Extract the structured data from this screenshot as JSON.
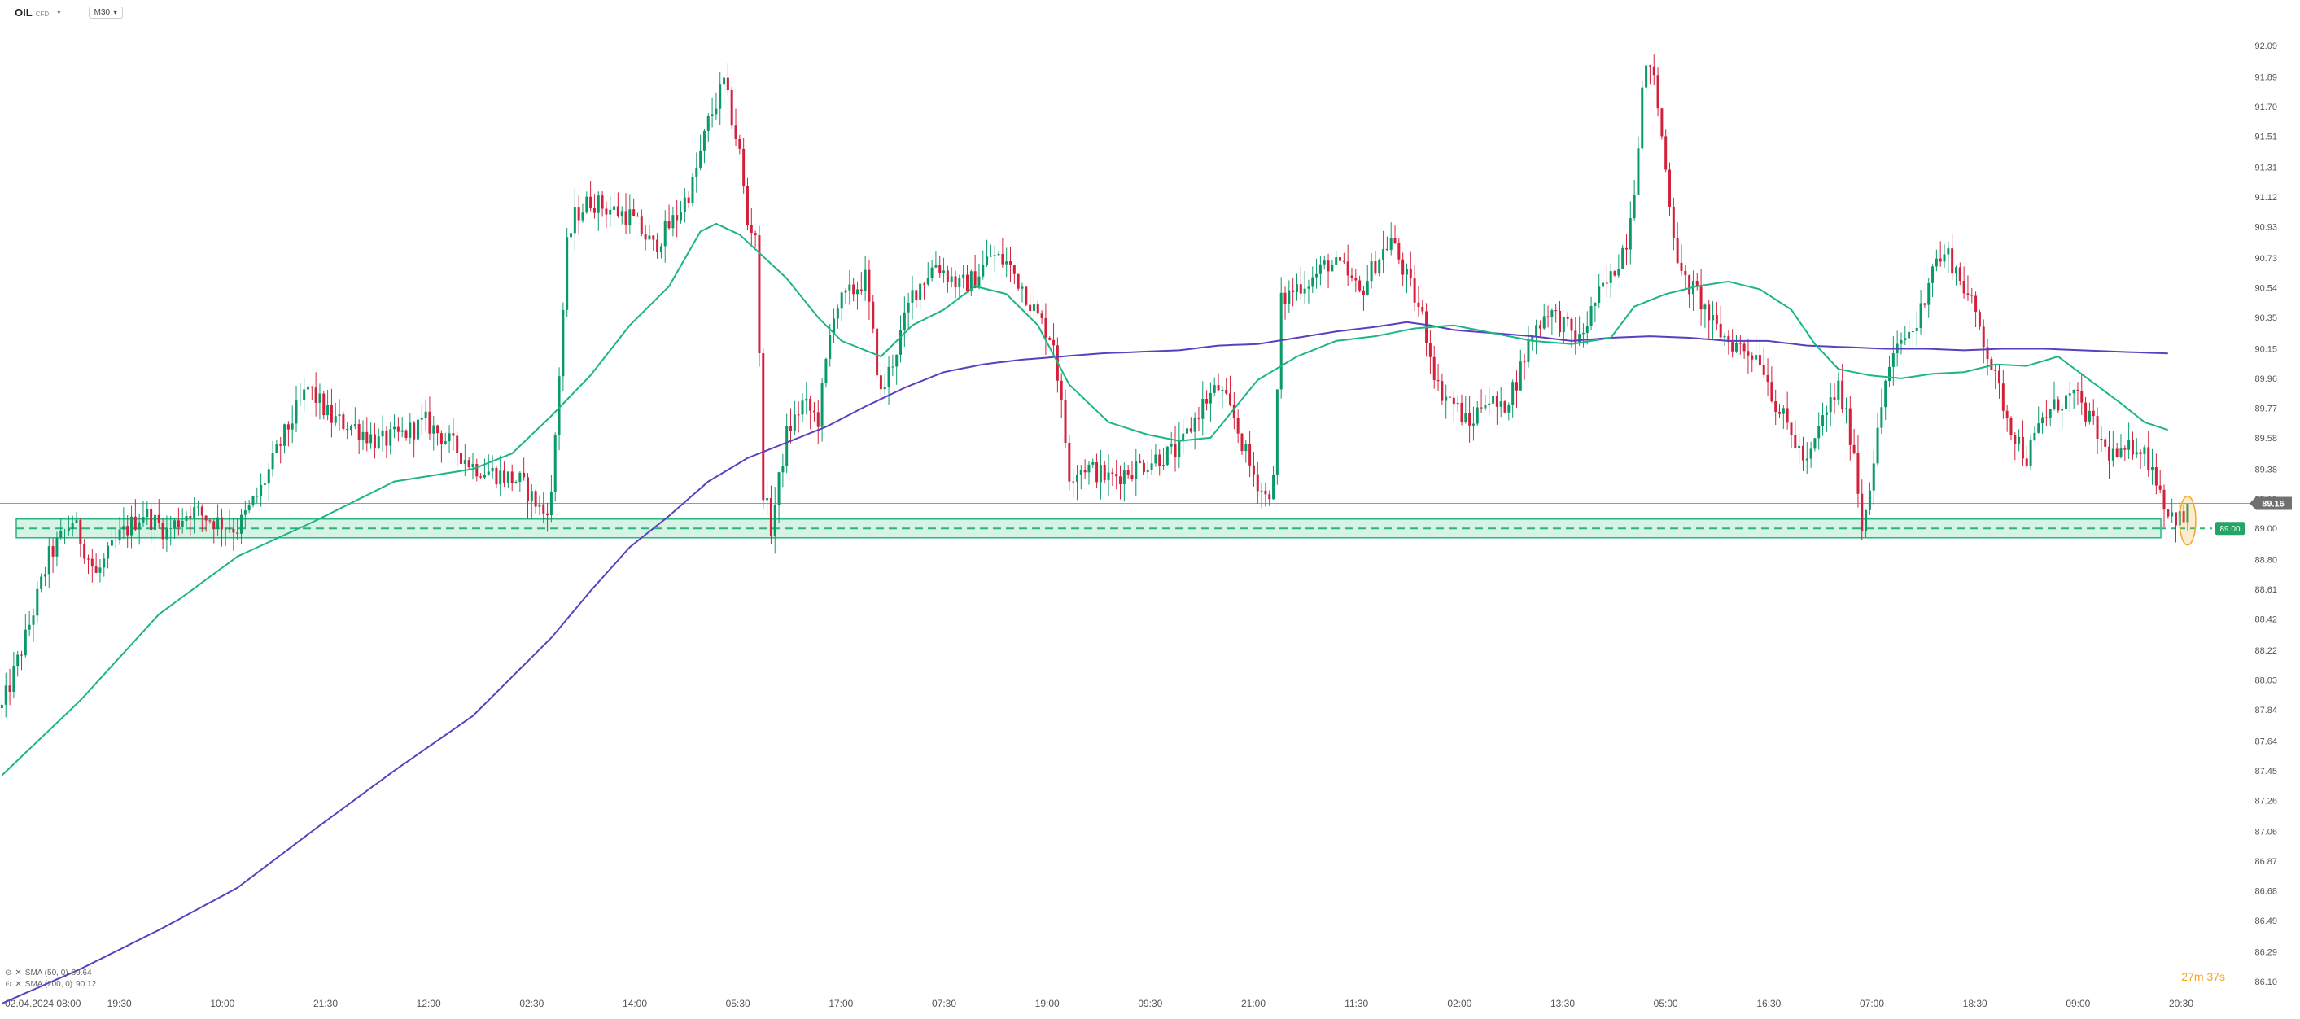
{
  "header": {
    "symbol": "OIL",
    "instrument_type": "CFD",
    "timeframe": "M30",
    "dropdown_icon": "chevron-down-icon"
  },
  "indicators": [
    {
      "label": "SMA (50, 0)",
      "value": "89.64",
      "color": "#1db586"
    },
    {
      "label": "SMA (200, 0)",
      "value": "90.12",
      "color": "#5b3fbf"
    }
  ],
  "countdown": "27m 37s",
  "colors": {
    "up": "#0a9a6a",
    "down": "#d3213c",
    "sma50": "#1db586",
    "sma200": "#5b3fbf",
    "zone_fill": "#c8f0dc",
    "zone_stroke": "#2bb57c",
    "price_badge": "#707070",
    "level_badge": "#22a565",
    "highlight": "#f5a623"
  },
  "chart_data": {
    "type": "candlestick",
    "ylim": [
      86.1,
      92.09
    ],
    "y_ticks": [
      "92.09",
      "91.89",
      "91.70",
      "91.51",
      "91.31",
      "91.12",
      "90.93",
      "90.73",
      "90.54",
      "90.35",
      "90.15",
      "89.96",
      "89.77",
      "89.58",
      "89.38",
      "89.19",
      "89.00",
      "88.80",
      "88.61",
      "88.42",
      "88.22",
      "88.03",
      "87.84",
      "87.64",
      "87.45",
      "87.26",
      "87.06",
      "86.87",
      "86.68",
      "86.49",
      "86.29",
      "86.10"
    ],
    "x_ticks": [
      "02.04.2024 08:00",
      "19:30",
      "10:00",
      "21:30",
      "12:00",
      "02:30",
      "14:00",
      "05:30",
      "17:00",
      "07:30",
      "19:00",
      "09:30",
      "21:00",
      "11:30",
      "02:00",
      "13:30",
      "05:00",
      "16:30",
      "07:00",
      "18:30",
      "09:00",
      "20:30"
    ],
    "current_price": "89.16",
    "support_level": "89.00",
    "support_zone": [
      88.94,
      89.06
    ],
    "price_path": [
      [
        0,
        87.85
      ],
      [
        6,
        88.3
      ],
      [
        12,
        88.82
      ],
      [
        18,
        89.05
      ],
      [
        24,
        88.7
      ],
      [
        30,
        88.95
      ],
      [
        36,
        89.1
      ],
      [
        42,
        88.98
      ],
      [
        48,
        89.12
      ],
      [
        54,
        89.05
      ],
      [
        60,
        89.0
      ],
      [
        66,
        89.25
      ],
      [
        72,
        89.6
      ],
      [
        78,
        89.9
      ],
      [
        84,
        89.7
      ],
      [
        90,
        89.65
      ],
      [
        96,
        89.55
      ],
      [
        102,
        89.6
      ],
      [
        108,
        89.68
      ],
      [
        114,
        89.55
      ],
      [
        120,
        89.4
      ],
      [
        126,
        89.35
      ],
      [
        132,
        89.3
      ],
      [
        138,
        89.1
      ],
      [
        140,
        89.2
      ],
      [
        144,
        90.8
      ],
      [
        146,
        91.0
      ],
      [
        150,
        91.1
      ],
      [
        154,
        91.05
      ],
      [
        160,
        91.0
      ],
      [
        166,
        90.8
      ],
      [
        172,
        91.0
      ],
      [
        176,
        91.2
      ],
      [
        180,
        91.6
      ],
      [
        184,
        91.85
      ],
      [
        188,
        91.4
      ],
      [
        190,
        90.95
      ],
      [
        192,
        90.9
      ],
      [
        194,
        89.25
      ],
      [
        196,
        89.0
      ],
      [
        200,
        89.6
      ],
      [
        204,
        89.8
      ],
      [
        208,
        89.7
      ],
      [
        212,
        90.4
      ],
      [
        216,
        90.5
      ],
      [
        220,
        90.6
      ],
      [
        224,
        89.85
      ],
      [
        228,
        90.15
      ],
      [
        232,
        90.5
      ],
      [
        238,
        90.7
      ],
      [
        244,
        90.55
      ],
      [
        248,
        90.6
      ],
      [
        252,
        90.75
      ],
      [
        256,
        90.7
      ],
      [
        260,
        90.55
      ],
      [
        264,
        90.35
      ],
      [
        268,
        90.2
      ],
      [
        272,
        89.35
      ],
      [
        276,
        89.4
      ],
      [
        282,
        89.32
      ],
      [
        288,
        89.38
      ],
      [
        294,
        89.45
      ],
      [
        300,
        89.5
      ],
      [
        306,
        89.8
      ],
      [
        310,
        89.9
      ],
      [
        314,
        89.7
      ],
      [
        318,
        89.4
      ],
      [
        322,
        89.2
      ],
      [
        324,
        89.3
      ],
      [
        326,
        90.45
      ],
      [
        330,
        90.55
      ],
      [
        334,
        90.6
      ],
      [
        338,
        90.7
      ],
      [
        342,
        90.65
      ],
      [
        346,
        90.5
      ],
      [
        350,
        90.7
      ],
      [
        354,
        90.85
      ],
      [
        358,
        90.6
      ],
      [
        362,
        90.35
      ],
      [
        366,
        89.9
      ],
      [
        370,
        89.8
      ],
      [
        374,
        89.65
      ],
      [
        378,
        89.85
      ],
      [
        382,
        89.75
      ],
      [
        386,
        89.95
      ],
      [
        390,
        90.25
      ],
      [
        394,
        90.4
      ],
      [
        398,
        90.3
      ],
      [
        402,
        90.2
      ],
      [
        406,
        90.45
      ],
      [
        410,
        90.6
      ],
      [
        414,
        90.85
      ],
      [
        416,
        91.2
      ],
      [
        418,
        91.8
      ],
      [
        420,
        92.0
      ],
      [
        422,
        91.7
      ],
      [
        424,
        91.3
      ],
      [
        426,
        90.9
      ],
      [
        428,
        90.6
      ],
      [
        432,
        90.5
      ],
      [
        436,
        90.3
      ],
      [
        440,
        90.2
      ],
      [
        444,
        90.15
      ],
      [
        448,
        90.1
      ],
      [
        452,
        89.8
      ],
      [
        456,
        89.6
      ],
      [
        460,
        89.4
      ],
      [
        464,
        89.7
      ],
      [
        468,
        89.9
      ],
      [
        472,
        89.5
      ],
      [
        474,
        89.0
      ],
      [
        476,
        89.3
      ],
      [
        478,
        89.6
      ],
      [
        480,
        89.95
      ],
      [
        484,
        90.2
      ],
      [
        488,
        90.3
      ],
      [
        492,
        90.7
      ],
      [
        496,
        90.75
      ],
      [
        500,
        90.55
      ],
      [
        504,
        90.3
      ],
      [
        508,
        89.95
      ],
      [
        512,
        89.65
      ],
      [
        516,
        89.45
      ],
      [
        520,
        89.7
      ],
      [
        524,
        89.8
      ],
      [
        528,
        89.85
      ],
      [
        532,
        89.7
      ],
      [
        536,
        89.5
      ],
      [
        540,
        89.45
      ],
      [
        544,
        89.55
      ],
      [
        548,
        89.4
      ],
      [
        552,
        89.1
      ],
      [
        556,
        89.05
      ],
      [
        558,
        89.16
      ]
    ],
    "sma50": [
      [
        0,
        87.42
      ],
      [
        20,
        87.9
      ],
      [
        40,
        88.45
      ],
      [
        60,
        88.82
      ],
      [
        80,
        89.05
      ],
      [
        100,
        89.3
      ],
      [
        120,
        89.38
      ],
      [
        130,
        89.48
      ],
      [
        140,
        89.72
      ],
      [
        150,
        89.98
      ],
      [
        160,
        90.3
      ],
      [
        170,
        90.55
      ],
      [
        178,
        90.9
      ],
      [
        182,
        90.95
      ],
      [
        188,
        90.88
      ],
      [
        200,
        90.6
      ],
      [
        208,
        90.35
      ],
      [
        214,
        90.2
      ],
      [
        224,
        90.1
      ],
      [
        232,
        90.3
      ],
      [
        240,
        90.4
      ],
      [
        248,
        90.55
      ],
      [
        256,
        90.5
      ],
      [
        264,
        90.3
      ],
      [
        272,
        89.92
      ],
      [
        282,
        89.68
      ],
      [
        292,
        89.6
      ],
      [
        300,
        89.56
      ],
      [
        308,
        89.58
      ],
      [
        320,
        89.95
      ],
      [
        330,
        90.1
      ],
      [
        340,
        90.2
      ],
      [
        350,
        90.23
      ],
      [
        360,
        90.28
      ],
      [
        370,
        90.3
      ],
      [
        380,
        90.25
      ],
      [
        390,
        90.2
      ],
      [
        400,
        90.18
      ],
      [
        410,
        90.22
      ],
      [
        416,
        90.42
      ],
      [
        424,
        90.5
      ],
      [
        432,
        90.55
      ],
      [
        440,
        90.58
      ],
      [
        448,
        90.53
      ],
      [
        456,
        90.4
      ],
      [
        462,
        90.18
      ],
      [
        468,
        90.02
      ],
      [
        476,
        89.98
      ],
      [
        484,
        89.96
      ],
      [
        492,
        89.99
      ],
      [
        500,
        90.0
      ],
      [
        508,
        90.05
      ],
      [
        516,
        90.04
      ],
      [
        524,
        90.1
      ],
      [
        532,
        89.95
      ],
      [
        540,
        89.8
      ],
      [
        546,
        89.68
      ],
      [
        552,
        89.63
      ]
    ],
    "sma200": [
      [
        0,
        85.96
      ],
      [
        20,
        86.18
      ],
      [
        40,
        86.43
      ],
      [
        60,
        86.7
      ],
      [
        80,
        87.08
      ],
      [
        100,
        87.45
      ],
      [
        120,
        87.8
      ],
      [
        130,
        88.05
      ],
      [
        140,
        88.3
      ],
      [
        150,
        88.6
      ],
      [
        160,
        88.88
      ],
      [
        170,
        89.08
      ],
      [
        180,
        89.3
      ],
      [
        190,
        89.45
      ],
      [
        200,
        89.55
      ],
      [
        210,
        89.65
      ],
      [
        220,
        89.78
      ],
      [
        230,
        89.9
      ],
      [
        240,
        90.0
      ],
      [
        250,
        90.05
      ],
      [
        260,
        90.08
      ],
      [
        270,
        90.1
      ],
      [
        280,
        90.12
      ],
      [
        290,
        90.13
      ],
      [
        300,
        90.14
      ],
      [
        310,
        90.17
      ],
      [
        320,
        90.18
      ],
      [
        330,
        90.22
      ],
      [
        340,
        90.26
      ],
      [
        350,
        90.29
      ],
      [
        358,
        90.32
      ],
      [
        364,
        90.3
      ],
      [
        370,
        90.27
      ],
      [
        380,
        90.25
      ],
      [
        390,
        90.23
      ],
      [
        400,
        90.2
      ],
      [
        410,
        90.22
      ],
      [
        420,
        90.23
      ],
      [
        430,
        90.22
      ],
      [
        440,
        90.2
      ],
      [
        450,
        90.2
      ],
      [
        460,
        90.17
      ],
      [
        470,
        90.16
      ],
      [
        480,
        90.15
      ],
      [
        490,
        90.15
      ],
      [
        500,
        90.14
      ],
      [
        510,
        90.15
      ],
      [
        520,
        90.15
      ],
      [
        530,
        90.14
      ],
      [
        540,
        90.13
      ],
      [
        552,
        90.12
      ]
    ]
  }
}
